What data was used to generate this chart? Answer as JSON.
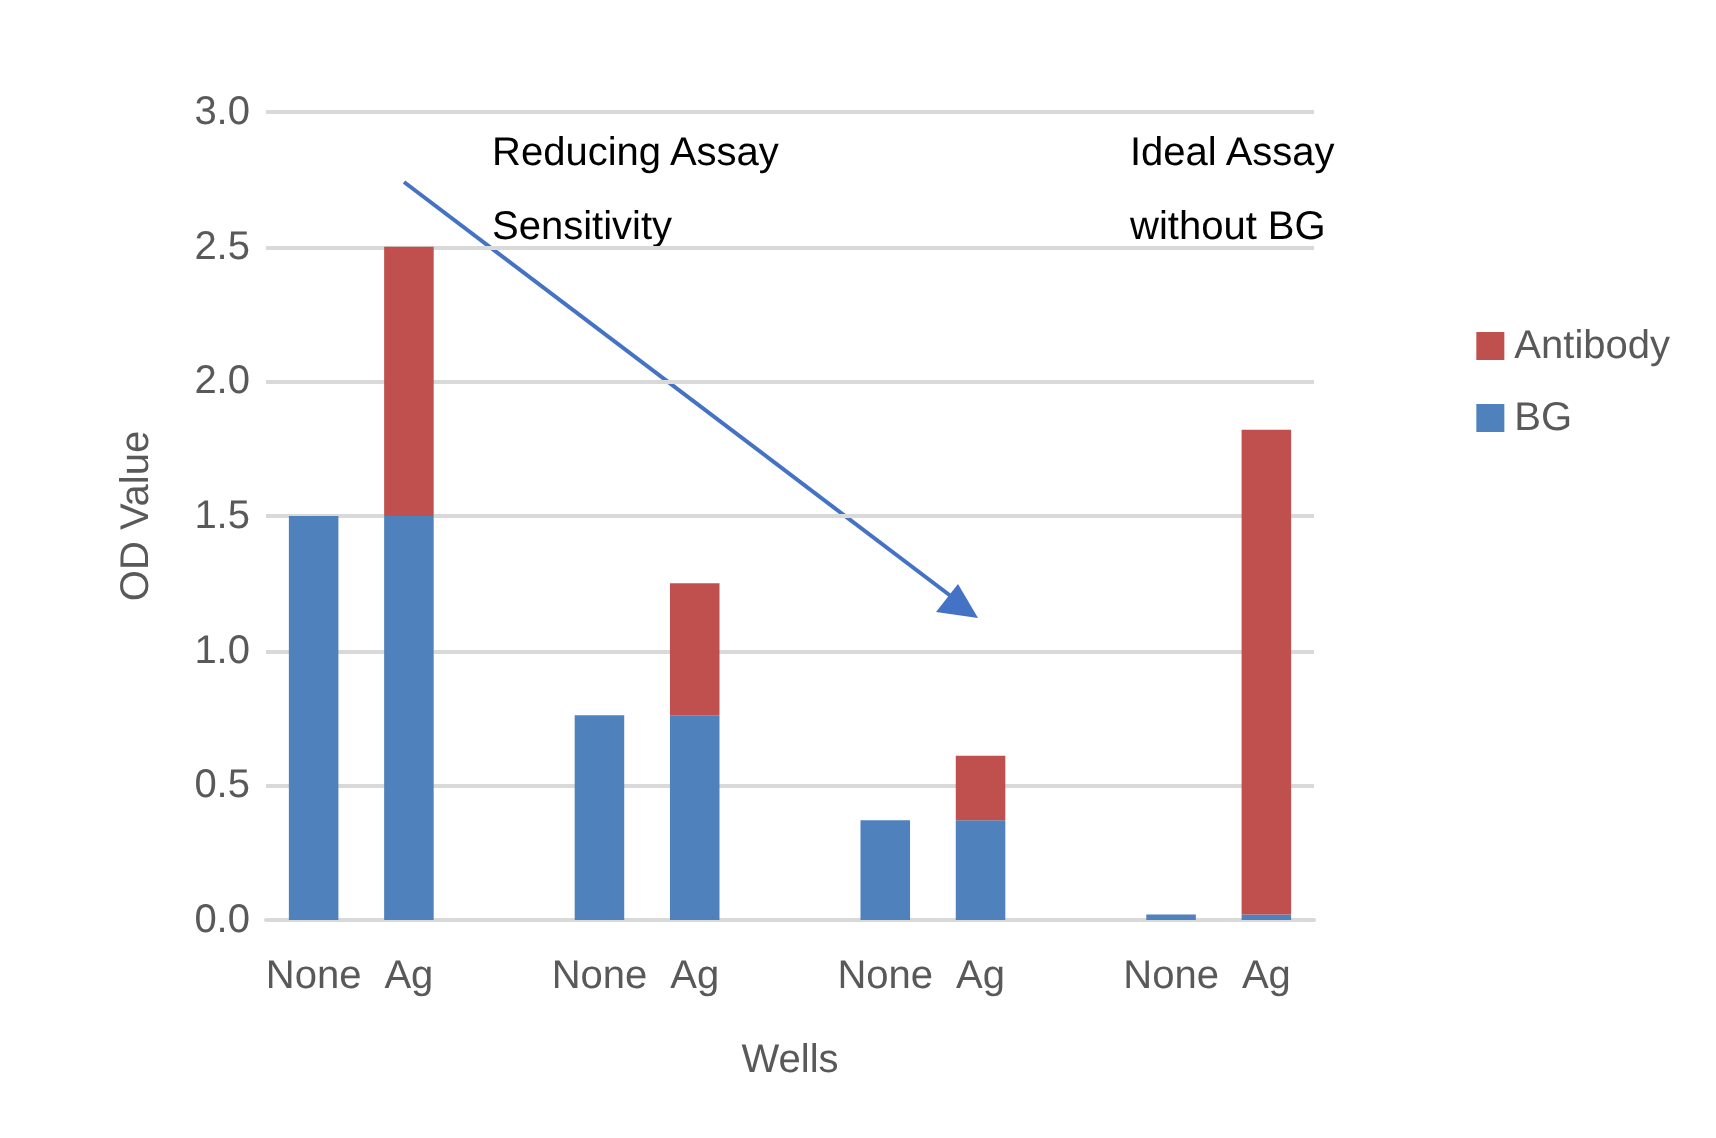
{
  "chart_data": {
    "type": "bar",
    "stacked": true,
    "xlabel": "Wells",
    "ylabel": "OD Value",
    "categories": [
      "None",
      "Ag",
      null,
      "None",
      "Ag",
      null,
      "None",
      "Ag",
      null,
      "None",
      "Ag"
    ],
    "series": [
      {
        "name": "BG",
        "color": "#4f81bd",
        "values": [
          1.5,
          1.5,
          null,
          0.76,
          0.76,
          null,
          0.37,
          0.37,
          null,
          0.02,
          0.02
        ]
      },
      {
        "name": "Antibody",
        "color": "#c0504d",
        "values": [
          null,
          1.0,
          null,
          null,
          0.49,
          null,
          null,
          0.24,
          null,
          null,
          1.8
        ]
      }
    ],
    "ylim": [
      0,
      3
    ],
    "yticks": [
      {
        "value": 0,
        "label": "0.0"
      },
      {
        "value": 0.5,
        "label": "0.5"
      },
      {
        "value": 1,
        "label": "1.0"
      },
      {
        "value": 1.5,
        "label": "1.5"
      },
      {
        "value": 2,
        "label": "2.0"
      },
      {
        "value": 2.5,
        "label": "2.5"
      },
      {
        "value": 3,
        "label": "3.0"
      }
    ],
    "grid": "y",
    "legend": "right",
    "annotations": [
      "Reducing Assay\nSensitivity",
      "Ideal Assay\nwithout BG"
    ]
  }
}
